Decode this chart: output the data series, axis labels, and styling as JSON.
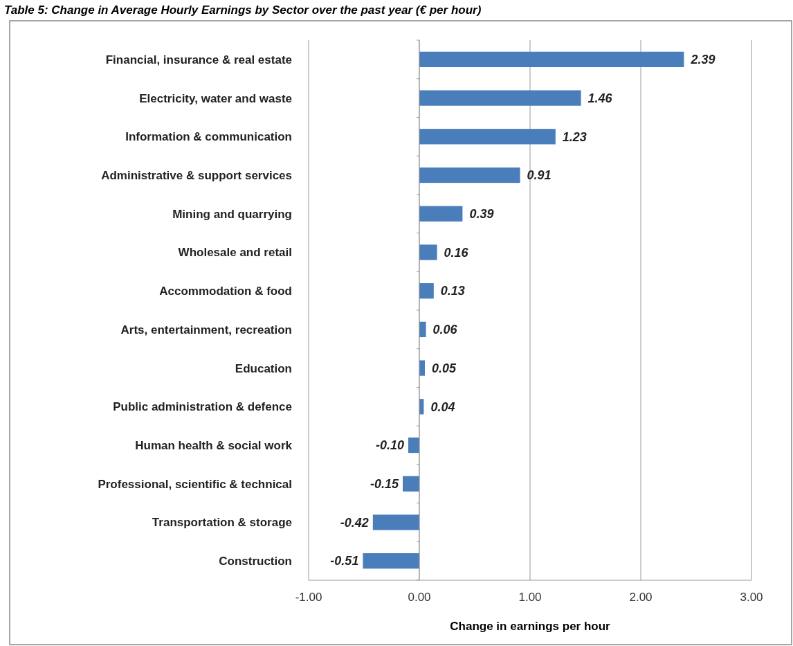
{
  "chart_data": {
    "type": "bar",
    "orientation": "horizontal",
    "title": "Table 5: Change in Average Hourly Earnings by Sector over the past year (€ per hour)",
    "xlabel": "Change in earnings per hour",
    "categories": [
      "Financial, insurance & real estate",
      "Electricity, water and waste",
      "Information & communication",
      "Administrative & support services",
      "Mining and quarrying",
      "Wholesale and retail",
      "Accommodation & food",
      "Arts, entertainment, recreation",
      "Education",
      "Public administration & defence",
      "Human health & social work",
      "Professional, scientific & technical",
      "Transportation & storage",
      "Construction"
    ],
    "values": [
      2.39,
      1.46,
      1.23,
      0.91,
      0.39,
      0.16,
      0.13,
      0.06,
      0.05,
      0.04,
      -0.1,
      -0.15,
      -0.42,
      -0.51
    ],
    "value_labels": [
      "2.39",
      "1.46",
      "1.23",
      "0.91",
      "0.39",
      "0.16",
      "0.13",
      "0.06",
      "0.05",
      "0.04",
      "-0.10",
      "-0.15",
      "-0.42",
      "-0.51"
    ],
    "color": "#4a7ebb",
    "xlim": [
      -1,
      3
    ],
    "xticks": [
      {
        "value": -1,
        "label": "-1.00"
      },
      {
        "value": 0,
        "label": "0.00"
      },
      {
        "value": 1,
        "label": "1.00"
      },
      {
        "value": 2,
        "label": "2.00"
      },
      {
        "value": 3,
        "label": "3.00"
      }
    ],
    "grid": "x"
  }
}
